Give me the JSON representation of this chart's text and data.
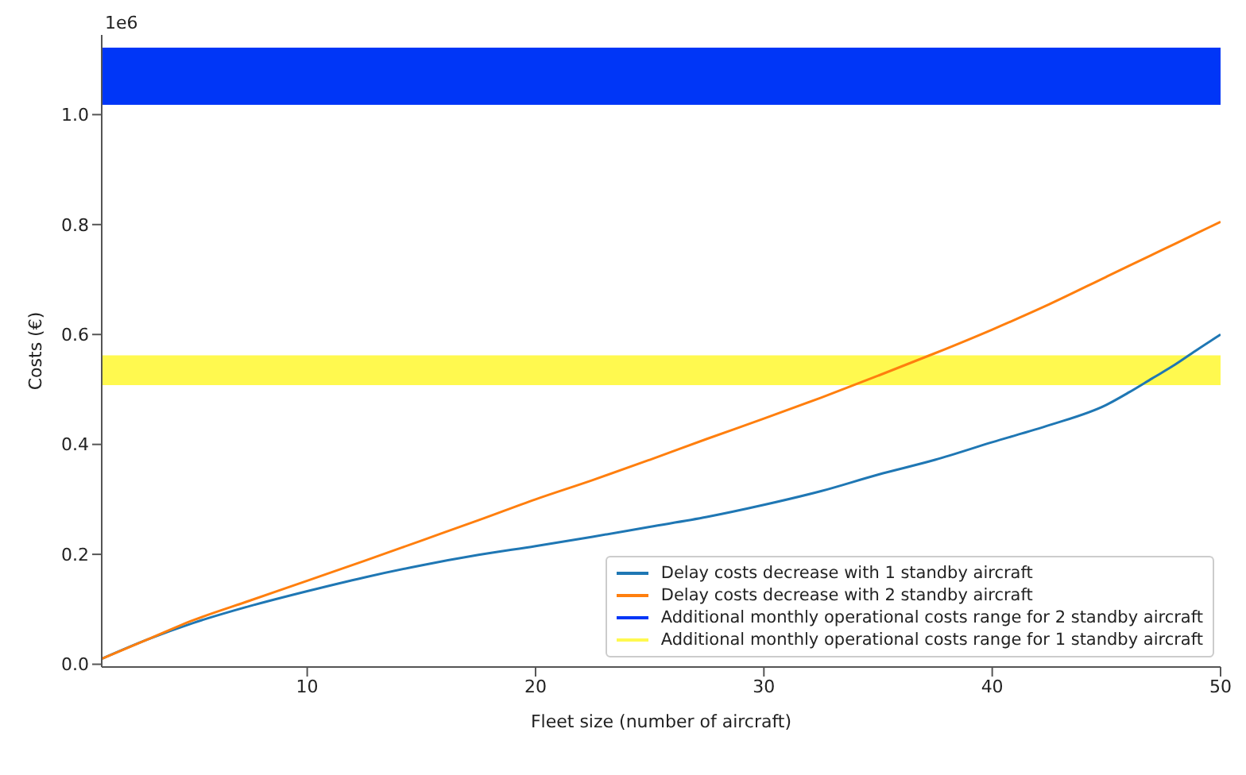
{
  "chart_data": {
    "type": "line",
    "xlabel": "Fleet size (number of aircraft)",
    "ylabel": "Costs (€)",
    "annotations": [
      "1e6"
    ],
    "x": [
      1,
      3,
      5,
      7.5,
      10,
      12.5,
      15,
      17.5,
      20,
      22.5,
      25,
      27.5,
      30,
      32.5,
      35,
      37.5,
      40,
      42.5,
      45,
      46,
      47,
      48,
      49,
      50
    ],
    "series": [
      {
        "name": "Delay costs decrease with 1 standby aircraft",
        "color": "#1f77b4",
        "values": [
          0.01,
          0.045,
          0.075,
          0.106,
          0.133,
          0.158,
          0.18,
          0.199,
          0.215,
          0.232,
          0.25,
          0.268,
          0.29,
          0.315,
          0.345,
          0.372,
          0.404,
          0.435,
          0.472,
          0.495,
          0.52,
          0.545,
          0.573,
          0.6
        ]
      },
      {
        "name": "Delay costs decrease with 2 standby aircraft",
        "color": "#ff7f0e",
        "values": [
          0.01,
          0.045,
          0.08,
          0.116,
          0.152,
          0.188,
          0.225,
          0.262,
          0.3,
          0.335,
          0.372,
          0.41,
          0.447,
          0.485,
          0.525,
          0.566,
          0.609,
          0.655,
          0.705,
          0.725,
          0.745,
          0.765,
          0.785,
          0.805
        ]
      }
    ],
    "bands": [
      {
        "axis": "y",
        "from": 1.018,
        "to": 1.122,
        "label": "Additional monthly operational costs range for 2 standby aircraft",
        "color": "#0036f7"
      },
      {
        "axis": "y",
        "from": 0.508,
        "to": 0.562,
        "label": "Additional monthly operational costs range for 1 standby aircraft",
        "color": "#fff94f"
      }
    ],
    "xlim": [
      1,
      50
    ],
    "xticks": [
      10,
      20,
      30,
      40,
      50
    ],
    "ylim": [
      -0.005,
      1.145
    ],
    "yticks": [
      {
        "value": 0,
        "label": "0.0"
      },
      0.2,
      0.4,
      0.6,
      0.8,
      {
        "value": 1,
        "label": "1.0"
      }
    ],
    "grid": false,
    "legend": "bottom right",
    "marker": "none",
    "line_style": "solid"
  }
}
